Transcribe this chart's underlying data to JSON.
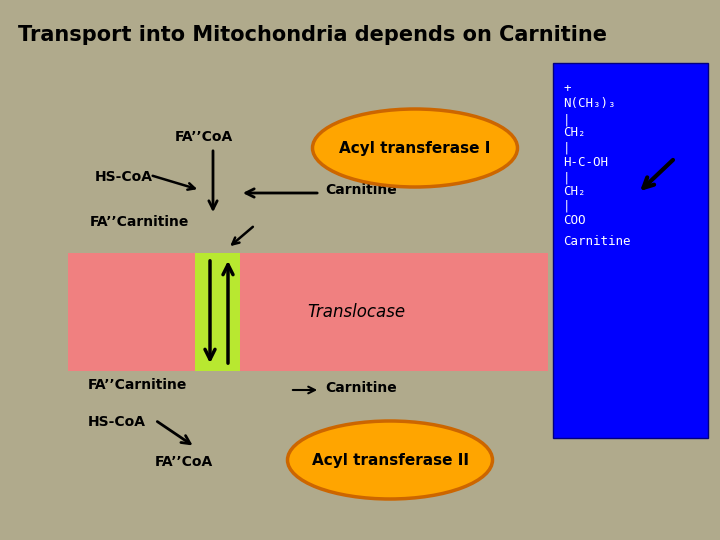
{
  "title": "Transport into Mitochondria depends on Carnitine",
  "bg_color": "#b0aa8c",
  "title_fontsize": 15,
  "title_fontweight": "bold",
  "membrane_color": "#f08080",
  "translocase_color": "#b8e830",
  "blue_box_color": "#0000ff",
  "orange_color": "#ffa500",
  "orange_edge": "#cc6600",
  "labels": {
    "fa_coa_top": "FA’’CoA",
    "hs_coa_top": "HS-CoA",
    "fa_carnitine_top": "FA’’Carnitine",
    "carnitine_top": "Carnitine",
    "translocase": "Translocase",
    "fa_carnitine_bot": "FA’’Carnitine",
    "carnitine_bot": "Carnitine",
    "hs_coa_bot": "HS-CoA",
    "fa_coa_bot": "FA’’CoA",
    "acyl_I": "Acyl transferase I",
    "acyl_II": "Acyl transferase II"
  },
  "carnitine_struct_lines": [
    "+",
    "N(CH₃)₃",
    "|",
    "CH₂",
    "|",
    "H-C-OH",
    "|",
    "CH₂",
    "|",
    "COO",
    "Carnitine"
  ],
  "fig_width": 7.2,
  "fig_height": 5.4,
  "dpi": 100
}
